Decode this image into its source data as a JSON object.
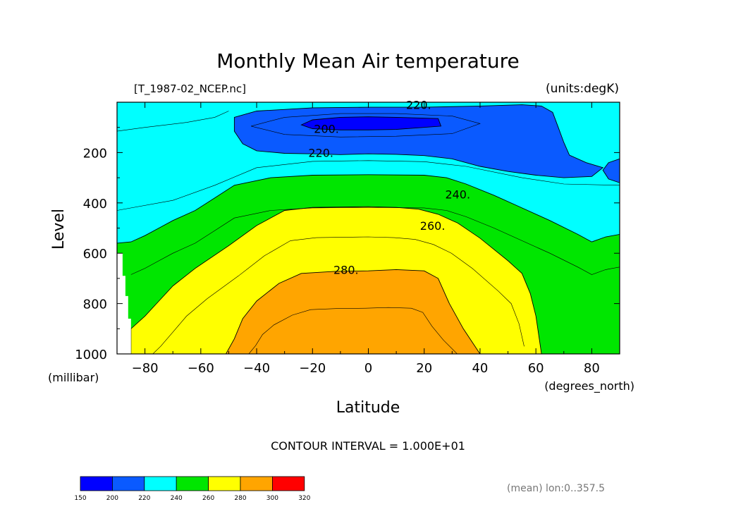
{
  "chart_data": {
    "type": "contour",
    "title": "Monthly Mean Air temperature",
    "source_label": "[T_1987-02_NCEP.nc]",
    "units_label": "(units:degK)",
    "xlabel": "Latitude",
    "x_units": "(degrees_north)",
    "ylabel": "Level",
    "y_units": "(millibar)",
    "xlim": [
      -90,
      90
    ],
    "ylim": [
      0,
      1000
    ],
    "y_reversed": true,
    "x_ticks": [
      -80,
      -60,
      -40,
      -20,
      0,
      20,
      40,
      60,
      80
    ],
    "x_tick_labels": [
      "−80",
      "−60",
      "−40",
      "−20",
      "0",
      "20",
      "40",
      "60",
      "80"
    ],
    "y_ticks": [
      200,
      400,
      600,
      800,
      1000
    ],
    "y_tick_labels": [
      "200",
      "400",
      "600",
      "800",
      "1000"
    ],
    "contour_interval_text": "CONTOUR INTERVAL = 1.000E+01",
    "footer_text": "(mean) lon:0..357.5",
    "contour_labels": [
      {
        "text": "220.",
        "lat": 18,
        "level": 10
      },
      {
        "text": "200.",
        "lat": -15,
        "level": 105
      },
      {
        "text": "220.",
        "lat": -17,
        "level": 200
      },
      {
        "text": "240.",
        "lat": 32,
        "level": 365
      },
      {
        "text": "260.",
        "lat": 23,
        "level": 490
      },
      {
        "text": "280.",
        "lat": -8,
        "level": 665
      }
    ],
    "filled_regions": [
      {
        "range": "220-240",
        "color": "#00ffff",
        "points": [
          [
            -90,
            0
          ],
          [
            90,
            0
          ],
          [
            90,
            1000
          ],
          [
            -90,
            1000
          ]
        ]
      },
      {
        "range": "240-260",
        "color": "#00e600",
        "points": [
          [
            -90,
            560
          ],
          [
            -85,
            555
          ],
          [
            -80,
            530
          ],
          [
            -75,
            500
          ],
          [
            -70,
            470
          ],
          [
            -62,
            430
          ],
          [
            -55,
            380
          ],
          [
            -48,
            330
          ],
          [
            -35,
            300
          ],
          [
            -20,
            290
          ],
          [
            0,
            288
          ],
          [
            20,
            290
          ],
          [
            28,
            300
          ],
          [
            35,
            325
          ],
          [
            45,
            370
          ],
          [
            55,
            420
          ],
          [
            65,
            470
          ],
          [
            75,
            525
          ],
          [
            80,
            555
          ],
          [
            85,
            535
          ],
          [
            90,
            525
          ],
          [
            90,
            1000
          ],
          [
            -90,
            1000
          ]
        ]
      },
      {
        "range": "260-280",
        "color": "#ffff00",
        "points": [
          [
            -85,
            900
          ],
          [
            -80,
            850
          ],
          [
            -75,
            790
          ],
          [
            -70,
            730
          ],
          [
            -62,
            660
          ],
          [
            -50,
            570
          ],
          [
            -40,
            490
          ],
          [
            -30,
            430
          ],
          [
            -20,
            418
          ],
          [
            0,
            415
          ],
          [
            10,
            418
          ],
          [
            18,
            425
          ],
          [
            25,
            445
          ],
          [
            32,
            480
          ],
          [
            40,
            540
          ],
          [
            50,
            630
          ],
          [
            55,
            680
          ],
          [
            58,
            760
          ],
          [
            60,
            850
          ],
          [
            62,
            1000
          ],
          [
            -85,
            1000
          ]
        ]
      },
      {
        "range": "280-290",
        "color": "#ffa500",
        "points": [
          [
            -51,
            1000
          ],
          [
            -48,
            940
          ],
          [
            -45,
            860
          ],
          [
            -40,
            790
          ],
          [
            -32,
            720
          ],
          [
            -24,
            680
          ],
          [
            -12,
            672
          ],
          [
            0,
            670
          ],
          [
            10,
            665
          ],
          [
            20,
            670
          ],
          [
            25,
            700
          ],
          [
            29,
            800
          ],
          [
            34,
            900
          ],
          [
            40,
            1000
          ]
        ]
      },
      {
        "range": "200-220",
        "color": "#0a5aff",
        "points": [
          [
            -48,
            60
          ],
          [
            -40,
            35
          ],
          [
            -20,
            22
          ],
          [
            0,
            20
          ],
          [
            20,
            20
          ],
          [
            40,
            15
          ],
          [
            55,
            10
          ],
          [
            62,
            15
          ],
          [
            66,
            40
          ],
          [
            68,
            100
          ],
          [
            70,
            160
          ],
          [
            72,
            210
          ],
          [
            78,
            240
          ],
          [
            84,
            260
          ],
          [
            80,
            295
          ],
          [
            70,
            300
          ],
          [
            60,
            290
          ],
          [
            50,
            275
          ],
          [
            40,
            255
          ],
          [
            30,
            225
          ],
          [
            20,
            212
          ],
          [
            10,
            207
          ],
          [
            0,
            205
          ],
          [
            -10,
            208
          ],
          [
            -20,
            205
          ],
          [
            -30,
            203
          ],
          [
            -40,
            193
          ],
          [
            -45,
            165
          ],
          [
            -48,
            115
          ]
        ]
      },
      {
        "range": "200-220",
        "color": "#0a5aff",
        "points": [
          [
            90,
            225
          ],
          [
            86,
            240
          ],
          [
            84,
            270
          ],
          [
            86,
            305
          ],
          [
            90,
            320
          ]
        ]
      },
      {
        "range": "190-200",
        "color": "#0000ff",
        "points": [
          [
            -24,
            90
          ],
          [
            -20,
            70
          ],
          [
            -10,
            60
          ],
          [
            0,
            58
          ],
          [
            10,
            60
          ],
          [
            25,
            65
          ],
          [
            26,
            95
          ],
          [
            10,
            108
          ],
          [
            0,
            110
          ],
          [
            -10,
            110
          ],
          [
            -20,
            105
          ]
        ]
      }
    ],
    "legend": {
      "colors": [
        "#0000ff",
        "#0a5aff",
        "#00ffff",
        "#00e600",
        "#ffff00",
        "#ffa500",
        "#ff0000"
      ],
      "labels": [
        "150",
        "200",
        "220",
        "240",
        "260",
        "280",
        "300",
        "320"
      ]
    }
  }
}
